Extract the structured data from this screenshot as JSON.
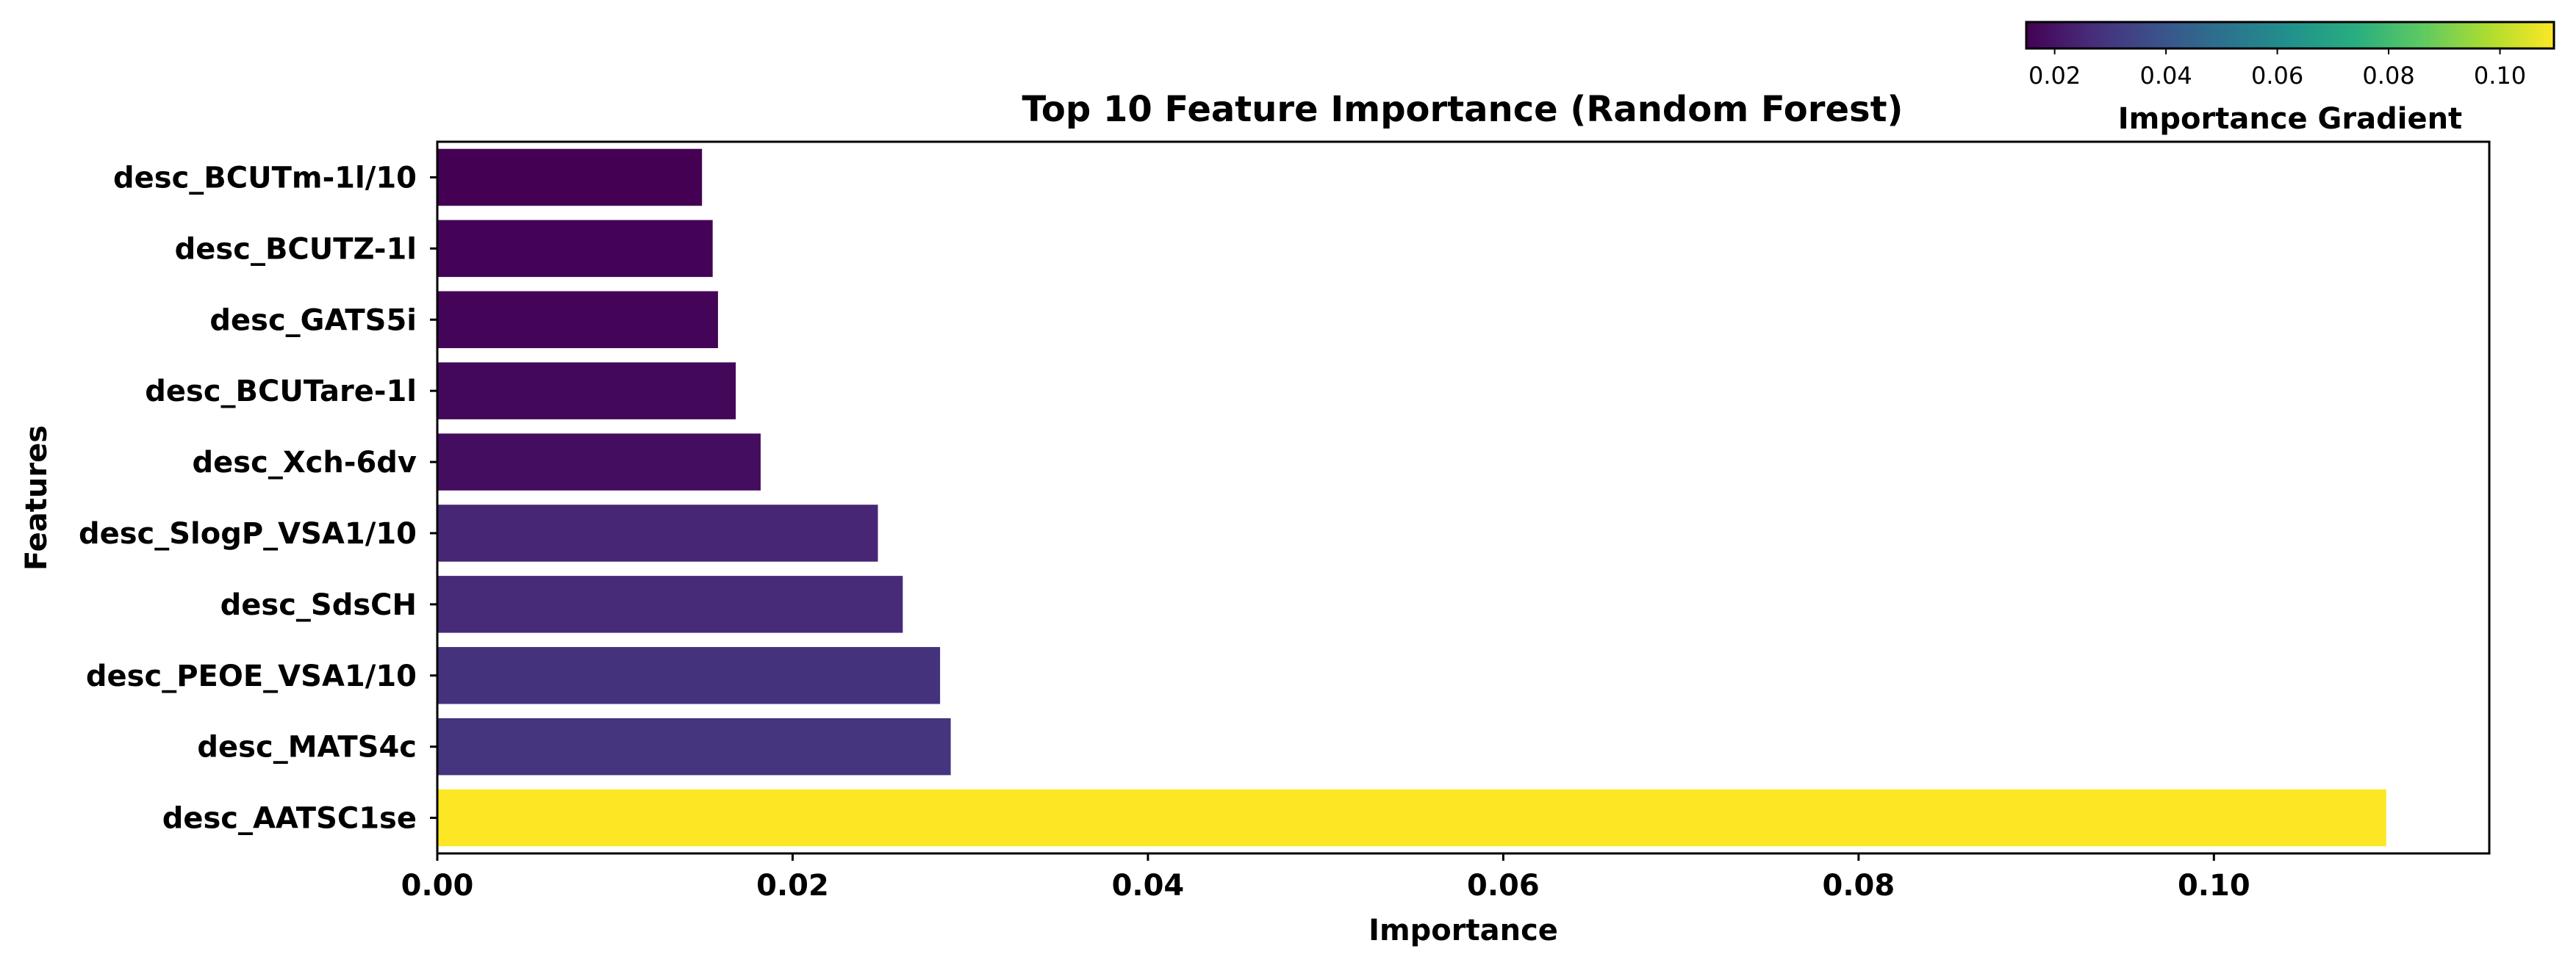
{
  "chart_data": {
    "type": "bar",
    "orientation": "horizontal",
    "title": "Top 10 Feature Importance (Random Forest)",
    "xlabel": "Importance",
    "ylabel": "Features",
    "categories": [
      "desc_BCUTm-1l/10",
      "desc_BCUTZ-1l",
      "desc_GATS5i",
      "desc_BCUTare-1l",
      "desc_Xch-6dv",
      "desc_SlogP_VSA1/10",
      "desc_SdsCH",
      "desc_PEOE_VSA1/10",
      "desc_MATS4c",
      "desc_AATSC1se"
    ],
    "values": [
      0.0149,
      0.0155,
      0.0158,
      0.0168,
      0.0182,
      0.0248,
      0.0262,
      0.0283,
      0.0289,
      0.1097
    ],
    "xlim": [
      0,
      0.1155
    ],
    "xticks": [
      "0.00",
      "0.02",
      "0.04",
      "0.06",
      "0.08",
      "0.10"
    ],
    "xtick_values": [
      0,
      0.02,
      0.04,
      0.06,
      0.08,
      0.1
    ],
    "colormap": "viridis",
    "grid": false,
    "colorbar": {
      "label": "Importance Gradient",
      "range": [
        0.0149,
        0.1097
      ],
      "ticks": [
        "0.02",
        "0.04",
        "0.06",
        "0.08",
        "0.10"
      ],
      "tick_values": [
        0.02,
        0.04,
        0.06,
        0.08,
        0.1
      ],
      "placement": "top-right"
    }
  }
}
